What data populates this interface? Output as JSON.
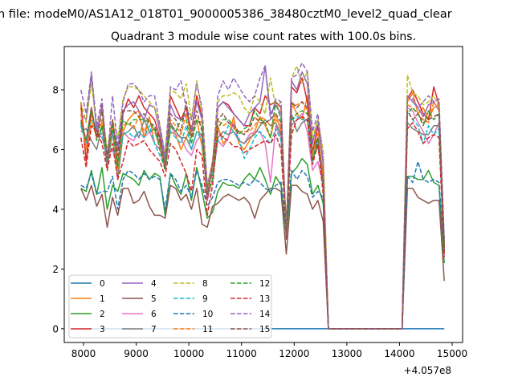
{
  "chart_data": {
    "type": "line",
    "suptitle": "n file: modeM0/AS1A12_018T01_9000005386_38480cztM0_level2_quad_clear",
    "title": "Quadrant 3 module wise count rates with 100.0s bins.",
    "xlabel": "",
    "ylabel": "",
    "x_offset_text": "+4.057e8",
    "x_start": 7950,
    "x_step": 100,
    "xlim": [
      7634,
      15198
    ],
    "ylim": [
      -0.46,
      9.45
    ],
    "xticks": [
      "8000",
      "9000",
      "10000",
      "11000",
      "12000",
      "13000",
      "14000",
      "15000"
    ],
    "yticks": [
      "0",
      "2",
      "4",
      "6",
      "8"
    ],
    "legend_position": "lower-left",
    "legend_columns": 4,
    "series": [
      {
        "name": "0",
        "color": "#1f77b4",
        "dashed": false,
        "values": [
          0,
          0,
          0,
          0,
          0,
          0,
          0,
          0,
          0,
          0,
          0,
          0,
          0,
          0,
          0,
          0,
          0,
          0,
          0,
          0,
          0,
          0,
          0,
          0,
          0,
          0,
          0,
          0,
          0,
          0,
          0,
          0,
          0,
          0,
          0,
          0,
          0,
          0,
          0,
          0,
          0,
          0,
          0,
          0,
          0,
          0,
          0,
          0,
          0,
          0,
          0,
          0,
          0,
          0,
          0,
          0,
          0,
          0,
          0,
          0,
          0,
          0,
          0,
          0,
          0,
          0,
          0,
          0,
          0,
          0
        ]
      },
      {
        "name": "1",
        "color": "#ff7f0e",
        "dashed": false,
        "values": [
          7.4,
          6.0,
          7.2,
          6.6,
          6.9,
          5.5,
          6.8,
          5.6,
          6.6,
          7.0,
          7.2,
          7.3,
          6.4,
          7.1,
          6.2,
          6.0,
          5.6,
          6.6,
          6.5,
          6.0,
          6.4,
          6.8,
          7.0,
          6.1,
          4.6,
          5.6,
          6.8,
          6.2,
          6.4,
          7.1,
          6.2,
          6.0,
          6.3,
          6.6,
          7.1,
          6.8,
          6.4,
          7.2,
          6.6,
          3.4,
          7.6,
          7.2,
          7.0,
          7.8,
          5.7,
          6.4,
          5.2,
          0,
          0,
          0,
          0,
          0,
          0,
          0,
          0,
          0,
          0,
          0,
          0,
          0,
          0,
          0,
          7.6,
          7.9,
          7.2,
          7.4,
          7.0,
          7.4,
          7.5,
          2.5
        ]
      },
      {
        "name": "2",
        "color": "#2ca02c",
        "dashed": false,
        "values": [
          4.7,
          4.6,
          5.3,
          4.5,
          5.4,
          4.0,
          4.8,
          4.6,
          5.2,
          5.1,
          5.0,
          4.8,
          5.3,
          5.0,
          5.2,
          5.1,
          3.8,
          5.2,
          4.8,
          4.5,
          5.2,
          4.3,
          5.4,
          4.6,
          3.7,
          3.9,
          4.6,
          4.9,
          4.8,
          4.8,
          4.7,
          5.0,
          5.2,
          5.0,
          5.4,
          5.0,
          4.5,
          5.1,
          4.8,
          3.1,
          5.2,
          5.4,
          5.7,
          5.5,
          4.5,
          4.8,
          4.2,
          0,
          0,
          0,
          0,
          0,
          0,
          0,
          0,
          0,
          0,
          0,
          0,
          0,
          0,
          0,
          5.1,
          5.1,
          5.0,
          5.0,
          5.3,
          4.9,
          4.8,
          2.2
        ]
      },
      {
        "name": "3",
        "color": "#d62728",
        "dashed": false,
        "values": [
          7.6,
          5.6,
          7.4,
          6.4,
          7.5,
          5.7,
          7.0,
          5.4,
          7.2,
          7.7,
          7.4,
          7.8,
          7.4,
          7.2,
          7.0,
          6.4,
          5.5,
          7.8,
          7.4,
          7.0,
          7.4,
          6.6,
          7.8,
          7.1,
          4.7,
          5.2,
          7.4,
          7.6,
          7.5,
          7.2,
          7.0,
          6.8,
          6.8,
          7.4,
          7.2,
          7.8,
          7.5,
          7.6,
          7.4,
          3.3,
          8.1,
          7.9,
          8.4,
          7.6,
          5.9,
          6.8,
          5.6,
          0,
          0,
          0,
          0,
          0,
          0,
          0,
          0,
          0,
          0,
          0,
          0,
          0,
          0,
          0,
          7.7,
          8.0,
          7.6,
          7.2,
          7.0,
          8.1,
          7.5,
          2.6
        ]
      },
      {
        "name": "4",
        "color": "#9467bd",
        "dashed": false,
        "values": [
          7.2,
          7.0,
          8.5,
          6.6,
          7.4,
          5.8,
          6.9,
          6.0,
          7.3,
          7.5,
          7.6,
          7.3,
          7.0,
          7.5,
          7.4,
          6.6,
          5.6,
          7.5,
          7.1,
          7.0,
          7.2,
          6.6,
          7.6,
          7.0,
          4.5,
          5.5,
          7.4,
          7.6,
          7.4,
          7.2,
          7.0,
          6.8,
          7.2,
          7.4,
          7.6,
          8.8,
          7.2,
          7.5,
          7.2,
          3.0,
          8.3,
          8.0,
          8.6,
          8.2,
          6.2,
          7.0,
          5.5,
          0,
          0,
          0,
          0,
          0,
          0,
          0,
          0,
          0,
          0,
          0,
          0,
          0,
          0,
          0,
          7.8,
          7.6,
          7.4,
          7.1,
          7.5,
          7.6,
          7.3,
          2.9
        ]
      },
      {
        "name": "5",
        "color": "#8c564b",
        "dashed": false,
        "values": [
          4.7,
          4.3,
          4.8,
          4.1,
          4.5,
          3.4,
          4.4,
          3.8,
          4.7,
          4.7,
          4.2,
          4.3,
          4.6,
          4.1,
          3.8,
          3.8,
          3.7,
          4.8,
          4.7,
          4.3,
          4.5,
          4.0,
          4.7,
          3.5,
          3.4,
          4.1,
          4.2,
          4.4,
          4.5,
          4.4,
          4.3,
          4.4,
          4.2,
          3.7,
          4.3,
          4.5,
          4.7,
          4.7,
          4.6,
          2.5,
          4.8,
          4.8,
          4.6,
          4.5,
          4.0,
          4.3,
          3.6,
          0,
          0,
          0,
          0,
          0,
          0,
          0,
          0,
          0,
          0,
          0,
          0,
          0,
          0,
          0,
          4.7,
          4.7,
          4.4,
          4.3,
          4.2,
          4.3,
          4.3,
          1.6
        ]
      },
      {
        "name": "6",
        "color": "#e377c2",
        "dashed": false,
        "values": [
          6.8,
          6.2,
          6.8,
          6.6,
          6.4,
          5.8,
          6.0,
          5.4,
          6.6,
          6.4,
          6.3,
          6.6,
          6.4,
          6.6,
          6.2,
          6.0,
          5.4,
          6.8,
          6.5,
          6.4,
          6.0,
          5.8,
          6.3,
          6.5,
          4.3,
          5.0,
          6.3,
          6.1,
          6.4,
          6.9,
          6.3,
          6.2,
          6.5,
          6.6,
          6.6,
          6.2,
          4.9,
          6.8,
          6.4,
          3.4,
          6.8,
          7.0,
          7.2,
          6.6,
          5.3,
          5.6,
          4.8,
          0,
          0,
          0,
          0,
          0,
          0,
          0,
          0,
          0,
          0,
          0,
          0,
          0,
          0,
          0,
          7.4,
          7.3,
          6.9,
          6.6,
          6.2,
          6.5,
          6.9,
          2.4
        ]
      },
      {
        "name": "7",
        "color": "#7f7f7f",
        "dashed": false,
        "values": [
          6.6,
          6.7,
          6.3,
          6.0,
          6.8,
          5.4,
          6.6,
          5.0,
          6.5,
          6.6,
          6.8,
          6.4,
          7.0,
          6.6,
          6.7,
          6.2,
          5.6,
          6.9,
          6.6,
          6.4,
          6.4,
          6.0,
          6.6,
          6.5,
          4.6,
          5.4,
          6.4,
          6.6,
          6.5,
          6.6,
          6.3,
          6.2,
          6.4,
          6.5,
          6.8,
          7.0,
          6.8,
          6.9,
          6.5,
          3.5,
          7.2,
          6.6,
          6.9,
          7.0,
          5.7,
          6.1,
          5.0,
          0,
          0,
          0,
          0,
          0,
          0,
          0,
          0,
          0,
          0,
          0,
          0,
          0,
          0,
          0,
          6.9,
          6.7,
          6.6,
          6.5,
          6.5,
          6.8,
          6.8,
          2.6
        ]
      },
      {
        "name": "8",
        "color": "#bcbd22",
        "dashed": true,
        "values": [
          7.6,
          6.9,
          8.2,
          6.8,
          7.3,
          6.0,
          7.0,
          6.4,
          7.7,
          8.1,
          8.1,
          8.0,
          7.8,
          7.6,
          7.4,
          6.8,
          5.8,
          8.0,
          7.9,
          7.7,
          8.2,
          7.0,
          8.3,
          7.2,
          4.8,
          5.6,
          7.6,
          7.8,
          7.8,
          7.9,
          7.8,
          7.4,
          7.2,
          7.8,
          7.6,
          7.2,
          8.4,
          7.4,
          7.6,
          3.2,
          8.4,
          8.8,
          8.2,
          8.6,
          6.4,
          7.0,
          6.0,
          0,
          0,
          0,
          0,
          0,
          0,
          0,
          0,
          0,
          0,
          0,
          0,
          0,
          0,
          0,
          8.5,
          7.9,
          7.8,
          7.5,
          7.6,
          7.8,
          7.4,
          2.8
        ]
      },
      {
        "name": "9",
        "color": "#17becf",
        "dashed": true,
        "values": [
          6.8,
          6.2,
          7.0,
          6.8,
          6.5,
          5.7,
          6.6,
          5.2,
          6.5,
          6.6,
          6.4,
          6.6,
          6.4,
          6.8,
          6.2,
          5.8,
          5.4,
          6.6,
          6.4,
          6.2,
          6.8,
          6.0,
          6.6,
          6.3,
          4.6,
          5.2,
          6.3,
          6.4,
          6.8,
          6.6,
          6.4,
          5.7,
          6.0,
          6.4,
          6.6,
          6.4,
          6.2,
          6.7,
          6.3,
          3.4,
          7.0,
          7.1,
          7.0,
          7.0,
          5.6,
          6.4,
          4.8,
          0,
          0,
          0,
          0,
          0,
          0,
          0,
          0,
          0,
          0,
          0,
          0,
          0,
          0,
          0,
          7.3,
          7.0,
          6.8,
          6.2,
          6.8,
          6.5,
          6.7,
          2.7
        ]
      },
      {
        "name": "10",
        "color": "#1f77b4",
        "dashed": true,
        "values": [
          4.8,
          4.7,
          5.2,
          4.5,
          4.6,
          4.6,
          5.1,
          4.0,
          5.0,
          5.3,
          5.2,
          5.0,
          5.2,
          5.0,
          5.1,
          5.0,
          4.0,
          5.2,
          5.0,
          4.6,
          4.8,
          4.4,
          5.3,
          4.8,
          4.1,
          4.4,
          4.9,
          5.0,
          5.0,
          4.9,
          4.8,
          4.9,
          4.8,
          5.0,
          4.9,
          4.7,
          4.6,
          4.8,
          4.9,
          3.3,
          5.3,
          5.0,
          5.3,
          5.1,
          4.4,
          4.6,
          4.4,
          0,
          0,
          0,
          0,
          0,
          0,
          0,
          0,
          0,
          0,
          0,
          0,
          0,
          0,
          0,
          5.1,
          4.9,
          5.6,
          5.0,
          4.9,
          5.0,
          4.9,
          2.5
        ]
      },
      {
        "name": "11",
        "color": "#ff7f0e",
        "dashed": true,
        "values": [
          7.2,
          6.0,
          7.0,
          6.4,
          7.0,
          5.6,
          6.8,
          5.2,
          6.8,
          6.9,
          6.7,
          7.1,
          6.6,
          7.0,
          6.6,
          6.1,
          5.5,
          7.0,
          6.8,
          6.5,
          7.2,
          6.4,
          7.0,
          6.9,
          4.5,
          5.4,
          7.0,
          6.8,
          6.9,
          6.7,
          6.6,
          6.6,
          6.6,
          6.8,
          7.1,
          7.0,
          6.8,
          7.0,
          6.8,
          3.3,
          7.4,
          7.5,
          7.6,
          7.3,
          5.8,
          6.6,
          5.0,
          0,
          0,
          0,
          0,
          0,
          0,
          0,
          0,
          0,
          0,
          0,
          0,
          0,
          0,
          0,
          7.5,
          7.4,
          7.2,
          7.0,
          6.9,
          7.6,
          7.3,
          2.7
        ]
      },
      {
        "name": "12",
        "color": "#2ca02c",
        "dashed": true,
        "values": [
          6.9,
          6.3,
          7.4,
          6.3,
          6.8,
          5.6,
          6.8,
          5.4,
          7.0,
          6.8,
          7.0,
          7.0,
          7.0,
          6.9,
          6.7,
          6.0,
          5.3,
          6.8,
          6.6,
          7.0,
          7.0,
          6.2,
          7.0,
          6.8,
          4.5,
          5.0,
          6.7,
          7.0,
          7.0,
          6.8,
          6.5,
          6.7,
          6.8,
          7.3,
          7.0,
          6.9,
          6.4,
          7.6,
          7.0,
          3.2,
          7.0,
          7.2,
          7.3,
          7.2,
          5.6,
          6.4,
          4.6,
          0,
          0,
          0,
          0,
          0,
          0,
          0,
          0,
          0,
          0,
          0,
          0,
          0,
          0,
          0,
          7.2,
          7.4,
          7.2,
          6.8,
          7.3,
          7.0,
          7.2,
          2.6
        ]
      },
      {
        "name": "13",
        "color": "#d62728",
        "dashed": true,
        "values": [
          6.4,
          5.4,
          6.8,
          6.6,
          6.2,
          5.3,
          6.2,
          5.0,
          5.6,
          6.3,
          6.1,
          6.2,
          6.3,
          6.0,
          5.8,
          5.6,
          5.1,
          6.2,
          6.0,
          5.6,
          5.2,
          4.6,
          6.0,
          5.8,
          3.8,
          4.8,
          6.6,
          6.4,
          6.3,
          6.1,
          6.1,
          5.9,
          6.0,
          6.1,
          6.2,
          6.3,
          6.2,
          6.5,
          6.0,
          3.2,
          6.5,
          7.0,
          7.1,
          7.0,
          5.5,
          6.2,
          4.5,
          0,
          0,
          0,
          0,
          0,
          0,
          0,
          0,
          0,
          0,
          0,
          0,
          0,
          0,
          0,
          6.7,
          6.9,
          6.6,
          6.2,
          6.4,
          6.5,
          6.4,
          2.4
        ]
      },
      {
        "name": "14",
        "color": "#9467bd",
        "dashed": true,
        "values": [
          8.0,
          7.2,
          8.6,
          6.8,
          7.7,
          5.6,
          7.8,
          6.1,
          7.6,
          8.2,
          8.2,
          8.0,
          7.6,
          7.8,
          7.8,
          6.8,
          5.8,
          8.1,
          8.0,
          8.3,
          7.4,
          7.0,
          8.2,
          7.4,
          4.8,
          5.5,
          7.8,
          8.3,
          8.0,
          8.4,
          8.1,
          7.8,
          7.6,
          7.8,
          8.4,
          8.8,
          7.0,
          7.7,
          7.6,
          3.1,
          8.4,
          8.5,
          8.9,
          8.6,
          6.6,
          7.2,
          5.6,
          0,
          0,
          0,
          0,
          0,
          0,
          0,
          0,
          0,
          0,
          0,
          0,
          0,
          0,
          0,
          7.8,
          7.7,
          7.4,
          7.6,
          7.8,
          7.6,
          7.7,
          3.0
        ]
      },
      {
        "name": "15",
        "color": "#8c564b",
        "dashed": true,
        "values": [
          7.0,
          6.3,
          7.4,
          6.4,
          7.3,
          5.7,
          7.0,
          5.8,
          7.3,
          7.3,
          7.3,
          7.1,
          7.2,
          6.9,
          6.8,
          6.3,
          5.4,
          7.2,
          7.0,
          6.6,
          7.6,
          6.4,
          7.3,
          6.6,
          4.3,
          5.6,
          7.0,
          7.2,
          6.9,
          6.8,
          6.6,
          6.5,
          6.7,
          7.1,
          6.9,
          6.9,
          7.0,
          7.2,
          6.9,
          3.0,
          7.6,
          7.4,
          7.6,
          7.4,
          6.0,
          6.4,
          4.9,
          0,
          0,
          0,
          0,
          0,
          0,
          0,
          0,
          0,
          0,
          0,
          0,
          0,
          0,
          0,
          7.3,
          7.0,
          7.2,
          6.9,
          7.0,
          7.1,
          7.2,
          2.7
        ]
      }
    ]
  }
}
